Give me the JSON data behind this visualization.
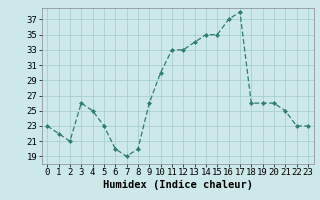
{
  "x": [
    0,
    1,
    2,
    3,
    4,
    5,
    6,
    7,
    8,
    9,
    10,
    11,
    12,
    13,
    14,
    15,
    16,
    17,
    18,
    19,
    20,
    21,
    22,
    23
  ],
  "y": [
    23,
    22,
    21,
    26,
    25,
    23,
    20,
    19,
    20,
    26,
    30,
    33,
    33,
    34,
    35,
    35,
    37,
    38,
    26,
    26,
    26,
    25,
    23,
    23
  ],
  "line_color": "#2e7d6e",
  "marker": "D",
  "marker_size": 2.0,
  "bg_color": "#cce8e8",
  "grid_color": "#aacece",
  "xlabel": "Humidex (Indice chaleur)",
  "ylabel_ticks": [
    19,
    21,
    23,
    25,
    27,
    29,
    31,
    33,
    35,
    37
  ],
  "ylim": [
    18.0,
    38.5
  ],
  "xlim": [
    -0.5,
    23.5
  ],
  "xtick_labels": [
    "0",
    "1",
    "2",
    "3",
    "4",
    "5",
    "6",
    "7",
    "8",
    "9",
    "10",
    "11",
    "12",
    "13",
    "14",
    "15",
    "16",
    "17",
    "18",
    "19",
    "20",
    "21",
    "22",
    "23"
  ],
  "xlabel_fontsize": 7.5,
  "tick_fontsize": 6.5
}
